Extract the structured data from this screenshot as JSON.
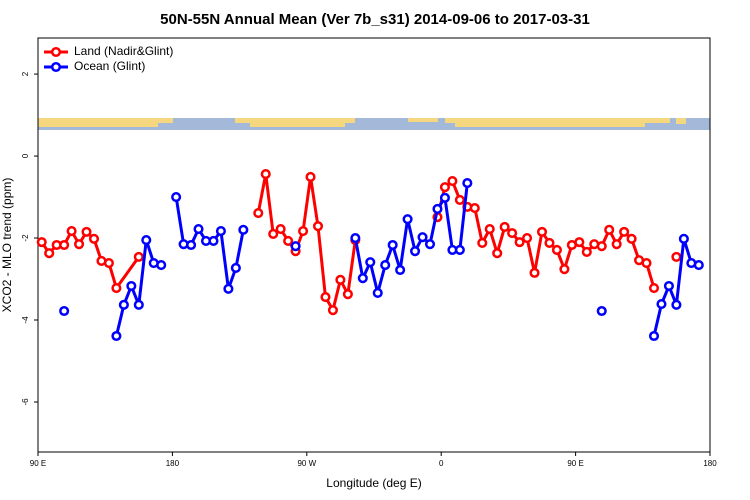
{
  "chart_data": {
    "type": "line",
    "title": "50N-55N Annual Mean (Ver 7b_s31)   2014-09-06 to 2017-03-31",
    "x_label": "Longitude (deg E)",
    "y_label": "XCO2 - MLO trend (ppm)",
    "xlim": [
      90,
      540
    ],
    "xticks": [
      {
        "value": 90,
        "label": "90 E"
      },
      180,
      {
        "value": 270,
        "label": "90 W"
      },
      {
        "value": 360,
        "label": "0"
      },
      {
        "value": 450,
        "label": "90 E"
      },
      {
        "value": 540,
        "label": "180"
      }
    ],
    "ylim": [
      -7.22,
      2.88
    ],
    "yticks": [
      2,
      0,
      -2,
      -4,
      -6
    ],
    "legend": "top-left",
    "series": [
      {
        "name": "Land (Nadir&Glint)",
        "color": "#ff0000",
        "x": [
          92.5,
          97.5,
          102.5,
          107.5,
          112.5,
          117.5,
          122.5,
          127.5,
          132.5,
          137.5,
          142.5,
          157.5,
          162.5,
          237.5,
          242.5,
          247.5,
          252.5,
          257.5,
          262.5,
          267.5,
          272.5,
          277.5,
          282.5,
          287.5,
          292.5,
          297.5,
          302.5,
          307.5,
          357.5,
          362.5,
          367.5,
          372.5,
          377.5,
          382.5,
          387.5,
          392.5,
          397.5,
          402.5,
          407.5,
          412.5,
          417.5,
          422.5,
          427.5,
          432.5,
          437.5,
          442.5,
          447.5,
          452.5,
          457.5,
          462.5,
          467.5,
          472.5,
          477.5,
          482.5,
          487.5,
          492.5,
          497.5,
          502.5,
          507.5,
          517.5
        ],
        "values": [
          -2.1,
          -2.37,
          -2.17,
          -2.17,
          -1.83,
          -2.15,
          -1.85,
          -2.02,
          -2.56,
          -2.61,
          -3.22,
          -2.46,
          null,
          -1.39,
          -0.44,
          -1.9,
          -1.78,
          -2.07,
          -2.32,
          -1.83,
          -0.51,
          -1.71,
          -3.44,
          -3.76,
          -3.02,
          -3.37,
          -2.05,
          null,
          -1.49,
          -0.76,
          -0.61,
          -1.07,
          -1.24,
          -1.27,
          -2.12,
          -1.78,
          -2.37,
          -1.73,
          -1.88,
          -2.1,
          -2.0,
          -2.85,
          -1.85,
          -2.12,
          -2.29,
          -2.76,
          -2.17,
          -2.1,
          -2.34,
          -2.15,
          -2.2,
          -1.8,
          -2.15,
          -1.85,
          -2.02,
          -2.54,
          -2.61,
          -3.22,
          null,
          -2.46
        ]
      },
      {
        "name": "Ocean (Glint)",
        "color": "#0000ff",
        "x": [
          107.5,
          112.5,
          142.5,
          147.5,
          152.5,
          157.5,
          162.5,
          167.5,
          172.5,
          177.5,
          182.5,
          187.5,
          192.5,
          197.5,
          202.5,
          207.5,
          212.5,
          217.5,
          222.5,
          227.5,
          232.5,
          262.5,
          267.5,
          302.5,
          307.5,
          312.5,
          317.5,
          322.5,
          327.5,
          332.5,
          337.5,
          342.5,
          347.5,
          352.5,
          357.5,
          362.5,
          367.5,
          372.5,
          377.5,
          382.5,
          467.5,
          472.5,
          502.5,
          507.5,
          512.5,
          517.5,
          522.5,
          527.5,
          532.5
        ],
        "values": [
          -3.78,
          null,
          -4.39,
          -3.63,
          -3.17,
          -3.63,
          -2.05,
          -2.61,
          -2.66,
          null,
          -1.0,
          -2.15,
          -2.17,
          -1.78,
          -2.07,
          -2.07,
          -1.83,
          -3.24,
          -2.73,
          -1.8,
          null,
          -2.2,
          null,
          -2.0,
          -2.98,
          -2.59,
          -3.34,
          -2.66,
          -2.17,
          -2.78,
          -1.54,
          -2.32,
          -1.98,
          -2.15,
          -1.29,
          -1.02,
          -2.29,
          -2.29,
          -0.66,
          null,
          -3.78,
          null,
          -4.39,
          -3.61,
          -3.17,
          -3.63,
          -2.02,
          -2.61,
          -2.66
        ]
      }
    ]
  }
}
